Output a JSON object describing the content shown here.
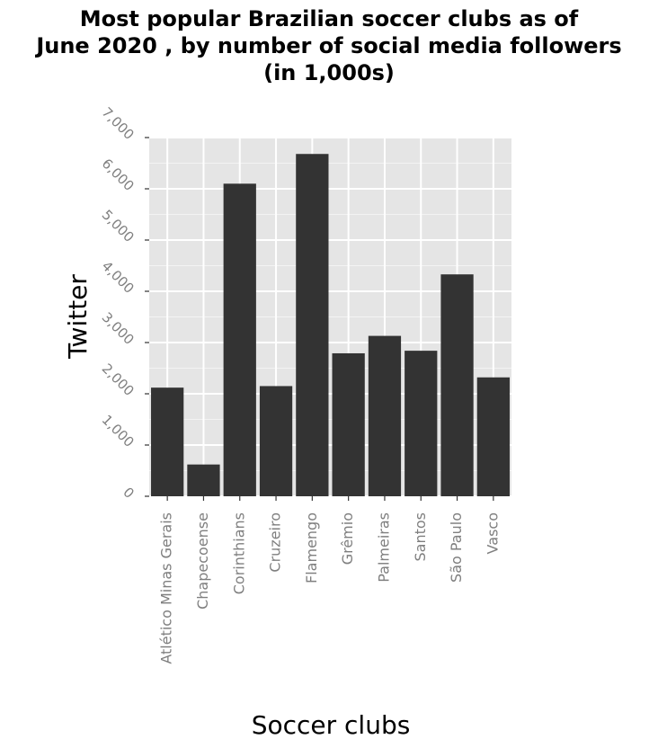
{
  "chart_data": {
    "type": "bar",
    "title_lines": [
      "Most popular Brazilian soccer clubs as of",
      "June 2020 , by number of social media followers",
      "(in 1,000s)"
    ],
    "xlabel": "Soccer clubs",
    "ylabel": "Twitter",
    "categories": [
      "Atlético Minas Gerais",
      "Chapecoense",
      "Corinthians",
      "Cruzeiro",
      "Flamengo",
      "Grêmio",
      "Palmeiras",
      "Santos",
      "São Paulo",
      "Vasco"
    ],
    "values": [
      2120,
      620,
      6100,
      2150,
      6680,
      2790,
      3130,
      2840,
      4330,
      2320
    ],
    "ylim": [
      0,
      7000
    ],
    "yticks": [
      0,
      1000,
      2000,
      3000,
      4000,
      5000,
      6000,
      7000
    ],
    "ytick_labels": [
      "0",
      "1,000",
      "2,000",
      "3,000",
      "4,000",
      "5,000",
      "6,000",
      "7,000"
    ],
    "grid": true,
    "legend": "none",
    "colors": {
      "bar": "#333333",
      "panel": "#e5e5e5",
      "grid": "#ffffff",
      "tick_text": "#7f7f7f"
    }
  }
}
